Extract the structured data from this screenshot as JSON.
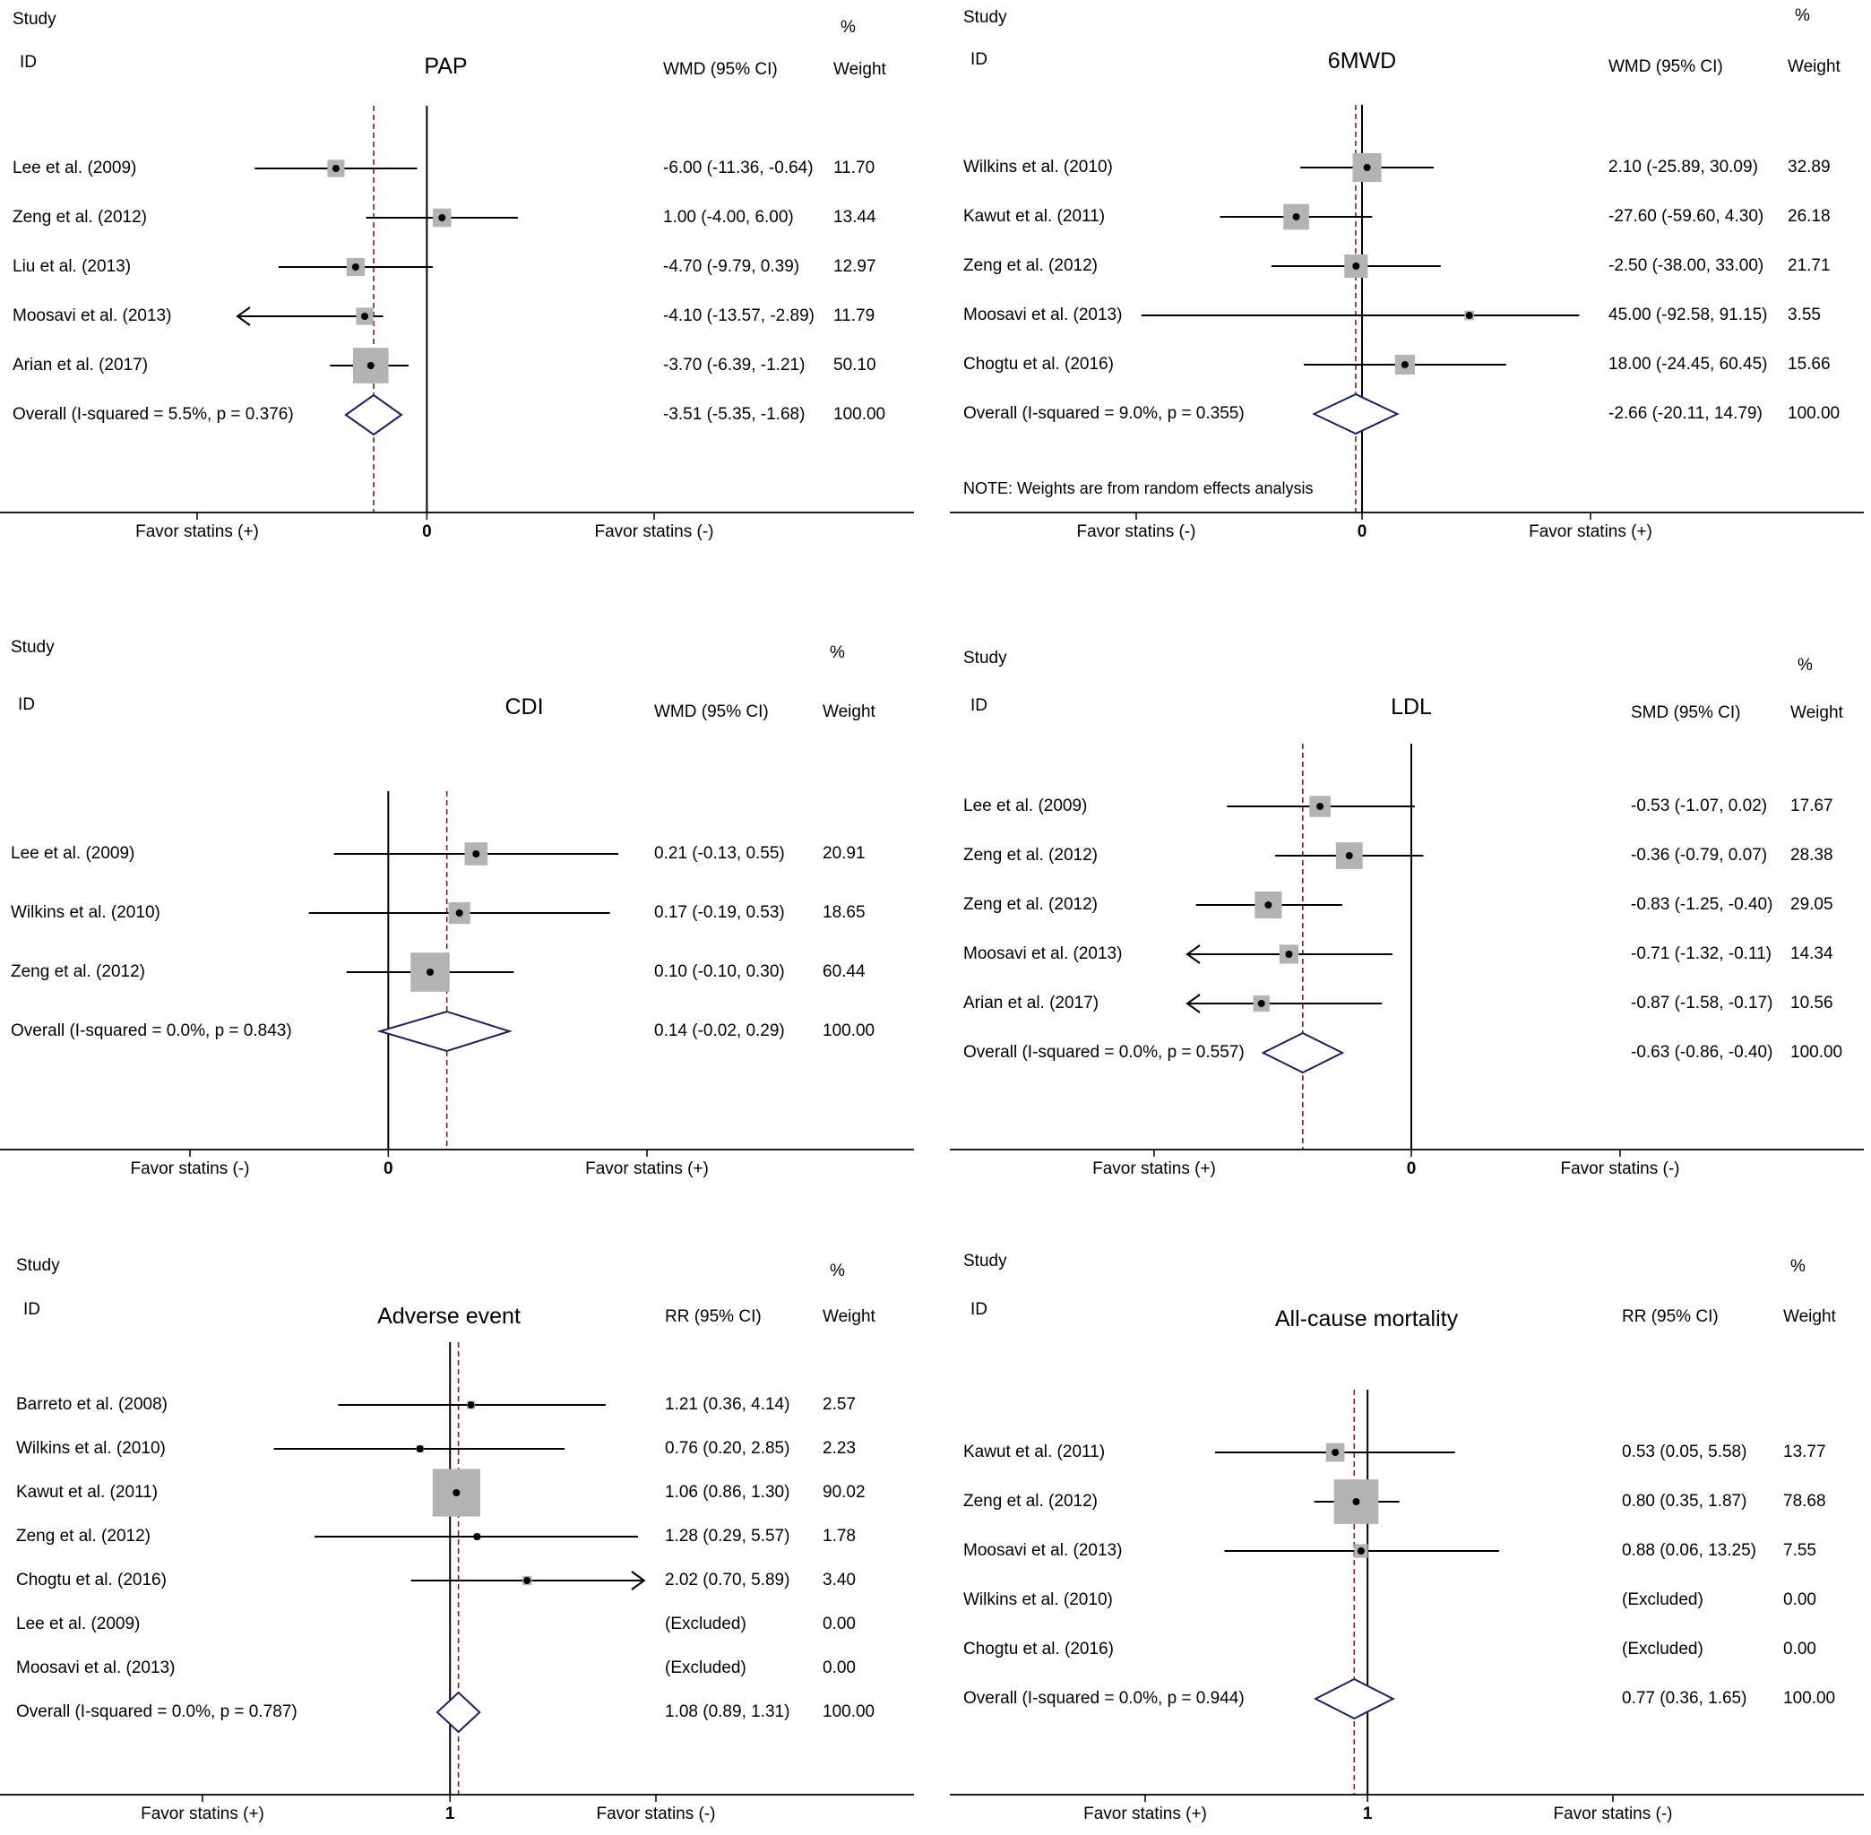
{
  "colors": {
    "ci_line": "#000000",
    "box": "#b3b3b3",
    "diamond": "#1f1f5c",
    "pooled_line": "#8b1a1a",
    "axis": "#000000"
  },
  "chart_data": [
    {
      "type": "forest",
      "title": "PAP",
      "headers": {
        "study": "Study",
        "id": "ID",
        "effect": "WMD (95% CI)",
        "pct": "%",
        "weight": "Weight"
      },
      "x_null": 0,
      "xlim": [
        -12.5,
        15.0
      ],
      "pooled": -3.51,
      "axis_left": "Favor statins (+)",
      "axis_null": "0",
      "axis_right": "Favor statins (-)",
      "studies": [
        {
          "label": "Lee et al. (2009)",
          "est": -6.0,
          "lo": -11.36,
          "hi": -0.64,
          "ci": "-6.00 (-11.36, -0.64)",
          "weight": "11.70",
          "w": 11.7
        },
        {
          "label": "Zeng et al. (2012)",
          "est": 1.0,
          "lo": -4.0,
          "hi": 6.0,
          "ci": "1.00 (-4.00, 6.00)",
          "weight": "13.44",
          "w": 13.44
        },
        {
          "label": "Liu et al. (2013)",
          "est": -4.7,
          "lo": -9.79,
          "hi": 0.39,
          "ci": "-4.70 (-9.79, 0.39)",
          "weight": "12.97",
          "w": 12.97
        },
        {
          "label": "Moosavi et al. (2013)",
          "est": -4.1,
          "lo": -13.57,
          "hi": -2.89,
          "ci": "-4.10 (-13.57, -2.89)",
          "weight": "11.79",
          "w": 11.79
        },
        {
          "label": "Arian et al. (2017)",
          "est": -3.7,
          "lo": -6.39,
          "hi": -1.21,
          "ci": "-3.70 (-6.39, -1.21)",
          "weight": "50.10",
          "w": 50.1
        }
      ],
      "overall": {
        "label": "Overall  (I-squared = 5.5%, p = 0.376)",
        "est": -3.51,
        "lo": -5.35,
        "hi": -1.68,
        "ci": "-3.51 (-5.35, -1.68)",
        "weight": "100.00"
      },
      "note": ""
    },
    {
      "type": "forest",
      "title": "6MWD",
      "headers": {
        "study": "Study",
        "id": "ID",
        "effect": "WMD (95% CI)",
        "pct": "%",
        "weight": "Weight"
      },
      "x_null": 0,
      "xlim": [
        -94,
        94
      ],
      "pooled": -2.66,
      "axis_left": "Favor statins (-)",
      "axis_null": "0",
      "axis_right": "Favor statins (+)",
      "studies": [
        {
          "label": "Wilkins et al. (2010)",
          "est": 2.1,
          "lo": -25.89,
          "hi": 30.09,
          "ci": "2.10 (-25.89, 30.09)",
          "weight": "32.89",
          "w": 32.89
        },
        {
          "label": "Kawut et al. (2011)",
          "est": -27.6,
          "lo": -59.6,
          "hi": 4.3,
          "ci": "-27.60 (-59.60, 4.30)",
          "weight": "26.18",
          "w": 26.18
        },
        {
          "label": "Zeng et al. (2012)",
          "est": -2.5,
          "lo": -38.0,
          "hi": 33.0,
          "ci": "-2.50 (-38.00, 33.00)",
          "weight": "21.71",
          "w": 21.71
        },
        {
          "label": "Moosavi et al. (2013)",
          "est": 45.0,
          "lo": -92.58,
          "hi": 91.15,
          "ci": "45.00 (-92.58, 91.15)",
          "weight": "3.55",
          "w": 3.55
        },
        {
          "label": "Chogtu et al. (2016)",
          "est": 18.0,
          "lo": -24.45,
          "hi": 60.45,
          "ci": "18.00 (-24.45, 60.45)",
          "weight": "15.66",
          "w": 15.66
        }
      ],
      "overall": {
        "label": "Overall  (I-squared = 9.0%, p = 0.355)",
        "est": -2.66,
        "lo": -20.11,
        "hi": 14.79,
        "ci": "-2.66 (-20.11, 14.79)",
        "weight": "100.00"
      },
      "note": "NOTE: Weights are from random effects analysis"
    },
    {
      "type": "forest",
      "title": "CDI",
      "headers": {
        "study": "Study",
        "id": "ID",
        "effect": "WMD (95% CI)",
        "pct": "%",
        "weight": "Weight"
      },
      "x_null": 0,
      "xlim": [
        -0.35,
        1.0
      ],
      "pooled": 0.14,
      "axis_left": "Favor statins (-)",
      "axis_null": "0",
      "axis_right": "Favor statins (+)",
      "studies": [
        {
          "label": "Lee et al. (2009)",
          "est": 0.21,
          "lo": -0.13,
          "hi": 0.55,
          "ci": "0.21 (-0.13, 0.55)",
          "weight": "20.91",
          "w": 20.91
        },
        {
          "label": "Wilkins et al. (2010)",
          "est": 0.17,
          "lo": -0.19,
          "hi": 0.53,
          "ci": "0.17 (-0.19, 0.53)",
          "weight": "18.65",
          "w": 18.65
        },
        {
          "label": "Zeng et al. (2012)",
          "est": 0.1,
          "lo": -0.1,
          "hi": 0.3,
          "ci": "0.10 (-0.10, 0.30)",
          "weight": "60.44",
          "w": 60.44
        }
      ],
      "overall": {
        "label": "Overall  (I-squared = 0.0%, p = 0.843)",
        "est": 0.14,
        "lo": -0.02,
        "hi": 0.29,
        "ci": "0.14 (-0.02, 0.29)",
        "weight": "100.00"
      },
      "note": ""
    },
    {
      "type": "forest",
      "title": "LDL",
      "headers": {
        "study": "Study",
        "id": "ID",
        "effect": "SMD (95% CI)",
        "pct": "%",
        "weight": "Weight"
      },
      "x_null": 0,
      "xlim": [
        -1.3,
        1.3
      ],
      "pooled": -0.63,
      "axis_left": "Favor statins (+)",
      "axis_null": "0",
      "axis_right": "Favor statins (-)",
      "studies": [
        {
          "label": "Lee et al. (2009)",
          "est": -0.53,
          "lo": -1.07,
          "hi": 0.02,
          "ci": "-0.53 (-1.07, 0.02)",
          "weight": "17.67",
          "w": 17.67
        },
        {
          "label": "Zeng et al. (2012)",
          "est": -0.36,
          "lo": -0.79,
          "hi": 0.07,
          "ci": "-0.36 (-0.79, 0.07)",
          "weight": "28.38",
          "w": 28.38
        },
        {
          "label": "Zeng et al. (2012)",
          "est": -0.83,
          "lo": -1.25,
          "hi": -0.4,
          "ci": "-0.83 (-1.25, -0.40)",
          "weight": "29.05",
          "w": 29.05
        },
        {
          "label": "Moosavi et al. (2013)",
          "est": -0.71,
          "lo": -1.32,
          "hi": -0.11,
          "ci": "-0.71 (-1.32, -0.11)",
          "weight": "14.34",
          "w": 14.34
        },
        {
          "label": "Arian et al. (2017)",
          "est": -0.87,
          "lo": -1.58,
          "hi": -0.17,
          "ci": "-0.87 (-1.58, -0.17)",
          "weight": "10.56",
          "w": 10.56
        }
      ],
      "overall": {
        "label": "Overall  (I-squared = 0.0%, p = 0.557)",
        "est": -0.63,
        "lo": -0.86,
        "hi": -0.4,
        "ci": "-0.63 (-0.86, -0.40)",
        "weight": "100.00"
      },
      "note": ""
    },
    {
      "type": "forest",
      "title": "Adverse event",
      "headers": {
        "study": "Study",
        "id": "ID",
        "effect": "RR (95% CI)",
        "pct": "%",
        "weight": "Weight"
      },
      "x_null": 1,
      "log_scale": true,
      "xlim": [
        0.14,
        7.0
      ],
      "xlim_display": [
        0.17,
        5.89
      ],
      "pooled": 1.08,
      "axis_left": "Favor statins (+)",
      "axis_null": "1",
      "axis_right": "Favor statins (-)",
      "studies": [
        {
          "label": "Barreto et al. (2008)",
          "est": 1.21,
          "lo": 0.36,
          "hi": 4.14,
          "ci": "1.21 (0.36, 4.14)",
          "weight": "2.57",
          "w": 2.57
        },
        {
          "label": "Wilkins et al. (2010)",
          "est": 0.76,
          "lo": 0.2,
          "hi": 2.85,
          "ci": "0.76 (0.20, 2.85)",
          "weight": "2.23",
          "w": 2.23
        },
        {
          "label": "Kawut et al. (2011)",
          "est": 1.06,
          "lo": 0.86,
          "hi": 1.3,
          "ci": "1.06 (0.86, 1.30)",
          "weight": "90.02",
          "w": 90.02
        },
        {
          "label": "Zeng et al. (2012)",
          "est": 1.28,
          "lo": 0.29,
          "hi": 5.57,
          "ci": "1.28 (0.29, 5.57)",
          "weight": "1.78",
          "w": 1.78
        },
        {
          "label": "Chogtu et al. (2016)",
          "est": 2.02,
          "lo": 0.7,
          "hi": 5.89,
          "ci": "2.02 (0.70, 5.89)",
          "weight": "3.40",
          "w": 3.4,
          "arrow_right": true
        },
        {
          "label": "Lee et al. (2009)",
          "est": null,
          "lo": null,
          "hi": null,
          "ci": "(Excluded)",
          "weight": "0.00",
          "w": 0
        },
        {
          "label": "Moosavi et al. (2013)",
          "est": null,
          "lo": null,
          "hi": null,
          "ci": "(Excluded)",
          "weight": "0.00",
          "w": 0
        }
      ],
      "overall": {
        "label": "Overall  (I-squared = 0.0%, p = 0.787)",
        "est": 1.08,
        "lo": 0.89,
        "hi": 1.31,
        "ci": "1.08 (0.89, 1.31)",
        "weight": "100.00"
      },
      "note": ""
    },
    {
      "type": "forest",
      "title": "All-cause mortality",
      "headers": {
        "study": "Study",
        "id": "ID",
        "effect": "RR (95% CI)",
        "pct": "%",
        "weight": "Weight"
      },
      "x_null": 1,
      "log_scale": true,
      "xlim": [
        0.012,
        80
      ],
      "pooled": 0.77,
      "axis_left": "Favor statins (+)",
      "axis_null": "1",
      "axis_right": "Favor statins (-)",
      "studies": [
        {
          "label": "Kawut et al. (2011)",
          "est": 0.53,
          "lo": 0.05,
          "hi": 5.58,
          "ci": "0.53 (0.05, 5.58)",
          "weight": "13.77",
          "w": 13.77
        },
        {
          "label": "Zeng et al. (2012)",
          "est": 0.8,
          "lo": 0.35,
          "hi": 1.87,
          "ci": "0.80 (0.35, 1.87)",
          "weight": "78.68",
          "w": 78.68
        },
        {
          "label": "Moosavi et al. (2013)",
          "est": 0.88,
          "lo": 0.06,
          "hi": 13.25,
          "ci": "0.88 (0.06, 13.25)",
          "weight": "7.55",
          "w": 7.55
        },
        {
          "label": "Wilkins et al. (2010)",
          "est": null,
          "lo": null,
          "hi": null,
          "ci": "(Excluded)",
          "weight": "0.00",
          "w": 0
        },
        {
          "label": "Chogtu et al. (2016)",
          "est": null,
          "lo": null,
          "hi": null,
          "ci": "(Excluded)",
          "weight": "0.00",
          "w": 0
        }
      ],
      "overall": {
        "label": "Overall  (I-squared = 0.0%, p = 0.944)",
        "est": 0.77,
        "lo": 0.36,
        "hi": 1.65,
        "ci": "0.77 (0.36, 1.65)",
        "weight": "100.00"
      },
      "note": ""
    }
  ]
}
